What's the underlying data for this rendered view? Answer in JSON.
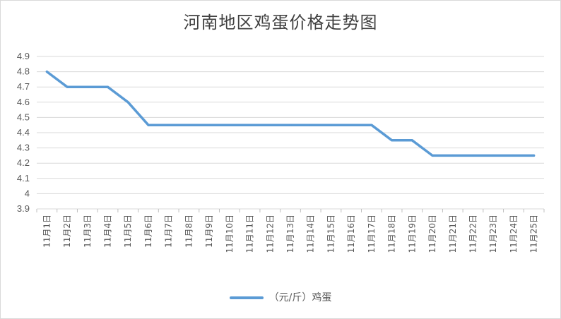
{
  "chart_data": {
    "type": "line",
    "title": "河南地区鸡蛋价格走势图",
    "categories": [
      "11月1日",
      "11月2日",
      "11月3日",
      "11月4日",
      "11月5日",
      "11月6日",
      "11月7日",
      "11月8日",
      "11月9日",
      "11月10日",
      "11月11日",
      "11月12日",
      "11月13日",
      "11月14日",
      "11月15日",
      "11月16日",
      "11月17日",
      "11月18日",
      "11月19日",
      "11月20日",
      "11月21日",
      "11月22日",
      "11月23日",
      "11月24日",
      "11月25日"
    ],
    "series": [
      {
        "name": "（元/斤）鸡蛋",
        "values": [
          4.8,
          4.7,
          4.7,
          4.7,
          4.6,
          4.45,
          4.45,
          4.45,
          4.45,
          4.45,
          4.45,
          4.45,
          4.45,
          4.45,
          4.45,
          4.45,
          4.45,
          4.35,
          4.35,
          4.25,
          4.25,
          4.25,
          4.25,
          4.25,
          4.25
        ]
      }
    ],
    "ylim": [
      3.9,
      4.9
    ],
    "yticks": [
      "3.9",
      "4",
      "4.1",
      "4.2",
      "4.3",
      "4.4",
      "4.5",
      "4.6",
      "4.7",
      "4.8",
      "4.9"
    ],
    "xlabel": "",
    "ylabel": "",
    "grid": true,
    "legend_position": "bottom",
    "line_color": "#5b9bd5"
  }
}
